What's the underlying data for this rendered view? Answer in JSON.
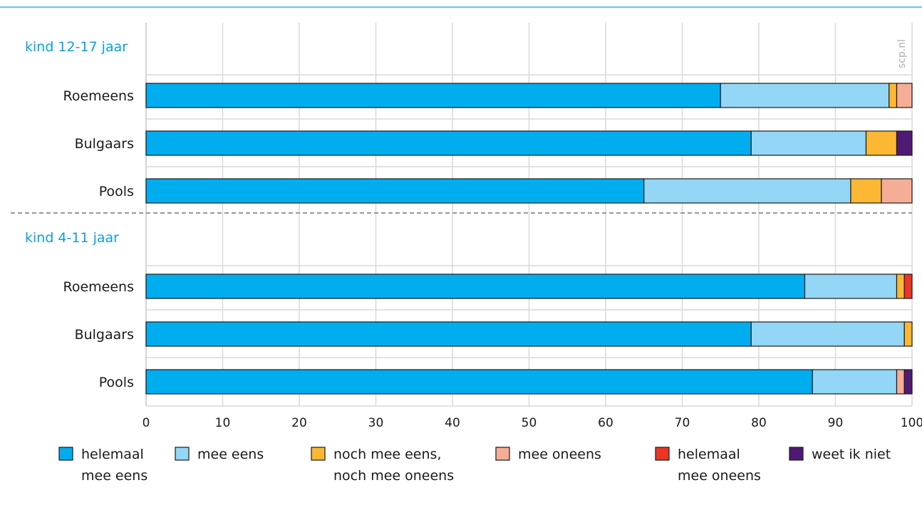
{
  "watermark": "scp.nl",
  "chart_data": {
    "type": "bar",
    "orientation": "horizontal",
    "stacked": true,
    "xlim": [
      0,
      100
    ],
    "xticks": [
      "0",
      "10",
      "20",
      "30",
      "40",
      "50",
      "60",
      "70",
      "80",
      "90",
      "100"
    ],
    "grid": true,
    "legend_position": "bottom",
    "series": [
      {
        "name": "helemaal mee eens",
        "lines": [
          "helemaal",
          "mee eens"
        ],
        "color": "#00adef"
      },
      {
        "name": "mee eens",
        "lines": [
          "mee eens"
        ],
        "color": "#93d6f6"
      },
      {
        "name": "noch mee eens, noch mee oneens",
        "lines": [
          "noch mee eens,",
          "noch mee oneens"
        ],
        "color": "#fcb833"
      },
      {
        "name": "mee oneens",
        "lines": [
          "mee oneens"
        ],
        "color": "#f6ad96"
      },
      {
        "name": "helemaal mee oneens",
        "lines": [
          "helemaal",
          "mee oneens"
        ],
        "color": "#ec3524"
      },
      {
        "name": "weet ik niet",
        "lines": [
          "weet ik niet"
        ],
        "color": "#4f1a73"
      }
    ],
    "groups": [
      {
        "label": "kind 12-17 jaar",
        "rows": [
          {
            "label": "Roemeens",
            "values": [
              75,
              22,
              1,
              2,
              0,
              0
            ]
          },
          {
            "label": "Bulgaars",
            "values": [
              79,
              15,
              4,
              0,
              0,
              2
            ]
          },
          {
            "label": "Pools",
            "values": [
              65,
              27,
              4,
              4,
              0,
              0
            ]
          }
        ]
      },
      {
        "label": "kind 4-11 jaar",
        "rows": [
          {
            "label": "Roemeens",
            "values": [
              86,
              12,
              1,
              0,
              1,
              0
            ]
          },
          {
            "label": "Bulgaars",
            "values": [
              79,
              20,
              1,
              0,
              0,
              0
            ]
          },
          {
            "label": "Pools",
            "values": [
              87,
              11,
              0,
              1,
              0,
              1
            ]
          }
        ]
      }
    ]
  }
}
